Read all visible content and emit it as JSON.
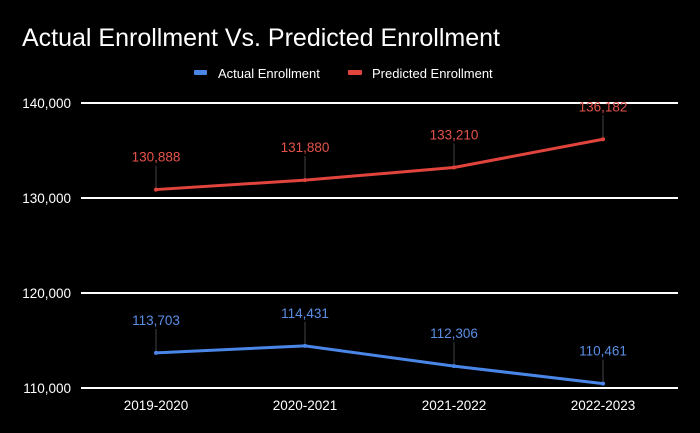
{
  "chart_data": {
    "type": "line",
    "title": "Actual Enrollment Vs. Predicted Enrollment",
    "xlabel": "",
    "ylabel": "",
    "categories": [
      "2019-2020",
      "2020-2021",
      "2021-2022",
      "2022-2023"
    ],
    "series": [
      {
        "name": "Actual Enrollment",
        "color": "#4a86e8",
        "label_color": "#5b8fe6",
        "values": [
          113703,
          114431,
          112306,
          110461
        ],
        "labels": [
          "113,703",
          "114,431",
          "112,306",
          "110,461"
        ]
      },
      {
        "name": "Predicted Enrollment",
        "color": "#e0443c",
        "label_color": "#e5534b",
        "values": [
          130888,
          131880,
          133210,
          136182
        ],
        "labels": [
          "130,888",
          "131,880",
          "133,210",
          "136,182"
        ]
      }
    ],
    "ylim": [
      110000,
      140000
    ],
    "yticks": [
      110000,
      120000,
      130000,
      140000
    ],
    "ytick_labels": [
      "110,000",
      "120,000",
      "130,000",
      "140,000"
    ],
    "grid": true,
    "legend_position": "top-center",
    "background": "#000000"
  }
}
